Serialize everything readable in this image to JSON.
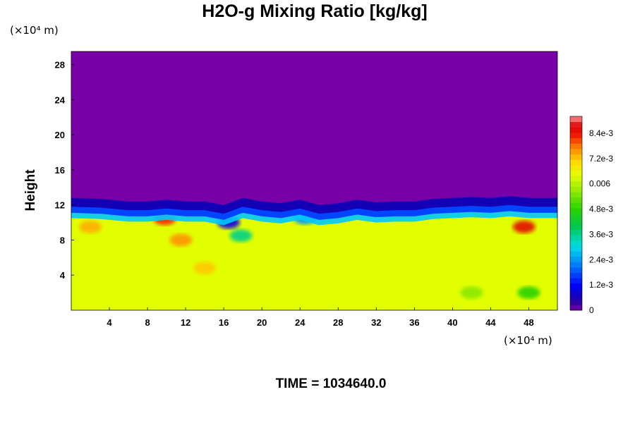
{
  "chart_data": {
    "type": "heatmap",
    "title": "H2O-g Mixing Ratio [kg/kg]",
    "ylabel": "Height",
    "xlabel": "",
    "x_unit_label": "(×10⁴ m)",
    "y_unit_label": "(×10⁴ m)",
    "xlim": [
      0,
      51
    ],
    "ylim": [
      0,
      29.5
    ],
    "x_ticks": [
      4,
      8,
      12,
      16,
      20,
      24,
      28,
      32,
      36,
      40,
      44,
      48
    ],
    "y_ticks": [
      4,
      8,
      12,
      16,
      20,
      24,
      28
    ],
    "x_tick_labels": [
      "4",
      "8",
      "12",
      "16",
      "20",
      "24",
      "28",
      "32",
      "36",
      "40",
      "44",
      "48"
    ],
    "y_tick_labels": [
      "4",
      "8",
      "12",
      "16",
      "20",
      "24",
      "28"
    ],
    "background_value": 0.0064,
    "upper_layer_value": 0.0,
    "interface_profile": [
      [
        0,
        11.4
      ],
      [
        3,
        11.3
      ],
      [
        6,
        11.0
      ],
      [
        8,
        11.0
      ],
      [
        10,
        11.2
      ],
      [
        12,
        11.0
      ],
      [
        14,
        11.0
      ],
      [
        16,
        10.6
      ],
      [
        18,
        11.4
      ],
      [
        20,
        11.0
      ],
      [
        22,
        10.8
      ],
      [
        24,
        11.2
      ],
      [
        26,
        10.6
      ],
      [
        28,
        10.8
      ],
      [
        30,
        11.2
      ],
      [
        32,
        10.9
      ],
      [
        34,
        11.0
      ],
      [
        36,
        11.0
      ],
      [
        38,
        11.3
      ],
      [
        40,
        11.4
      ],
      [
        42,
        11.5
      ],
      [
        44,
        11.4
      ],
      [
        46,
        11.6
      ],
      [
        48,
        11.4
      ],
      [
        51,
        11.4
      ]
    ],
    "features": [
      {
        "x": 9.8,
        "y": 10.4,
        "value": 0.0082
      },
      {
        "x": 2.0,
        "y": 9.5,
        "value": 0.0074
      },
      {
        "x": 47.5,
        "y": 9.5,
        "value": 0.0086
      },
      {
        "x": 11.5,
        "y": 8.0,
        "value": 0.0076
      },
      {
        "x": 14.0,
        "y": 4.8,
        "value": 0.0072
      },
      {
        "x": 16.5,
        "y": 10.0,
        "value": 0.001
      },
      {
        "x": 17.8,
        "y": 8.5,
        "value": 0.0036
      },
      {
        "x": 24.5,
        "y": 10.5,
        "value": 0.0024
      },
      {
        "x": 48.0,
        "y": 2.0,
        "value": 0.0048
      },
      {
        "x": 42.0,
        "y": 2.0,
        "value": 0.0056
      }
    ],
    "colorbar": {
      "min": 0,
      "max": 0.0092,
      "tick_values": [
        0,
        0.0012,
        0.0024,
        0.0036,
        0.0048,
        0.006,
        0.0072,
        0.0084
      ],
      "tick_labels": [
        "0",
        "1.2e-3",
        "2.4e-3",
        "3.6e-3",
        "4.8e-3",
        "0.006",
        "7.2e-3",
        "8.4e-3"
      ],
      "levels": 36
    },
    "colors": {
      "background": "#ffffff",
      "upper_layer": "#7800a8",
      "moist_layer": "#e2ff00"
    }
  },
  "footer": {
    "time_label": "TIME = 1034640.0"
  }
}
